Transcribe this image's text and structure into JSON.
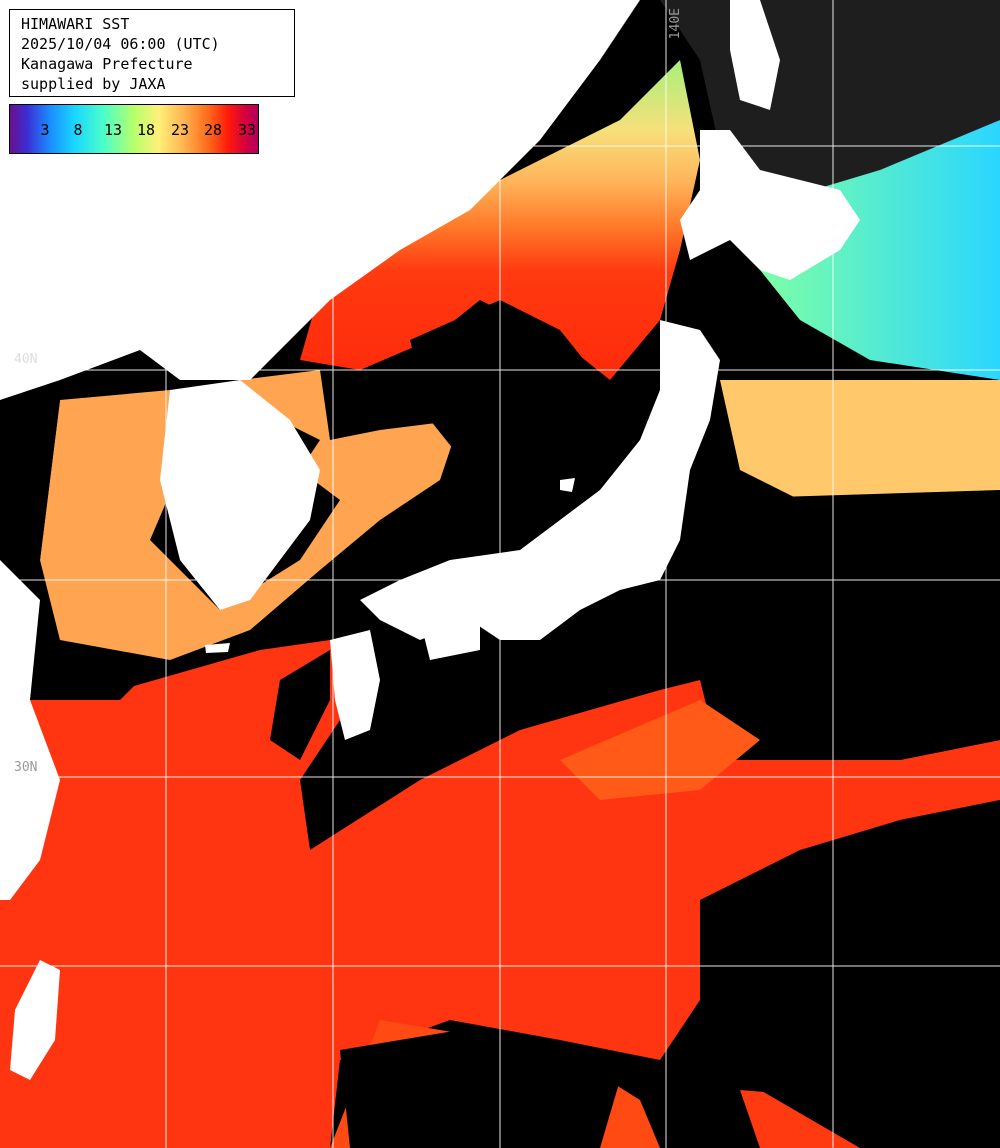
{
  "info": {
    "line1": "HIMAWARI SST",
    "line2": "2025/10/04 06:00 (UTC)",
    "line3": "Kanagawa Prefecture",
    "line4": "supplied by JAXA"
  },
  "legend": {
    "ticks": [
      "3",
      "8",
      "13",
      "18",
      "23",
      "28",
      "33"
    ]
  },
  "grid_labels": {
    "lat_40": "40N",
    "lat_30": "30N",
    "lon_140": "140E"
  },
  "colors": {
    "land": "#ffffff",
    "cloud_no_data": "#000000",
    "grid": "#ffffff",
    "warm_sea": "#ff3a10",
    "mid_sea": "#ffb45a",
    "cool_sea": "#b8ff6a",
    "cold_sea": "#33e0ff"
  }
}
